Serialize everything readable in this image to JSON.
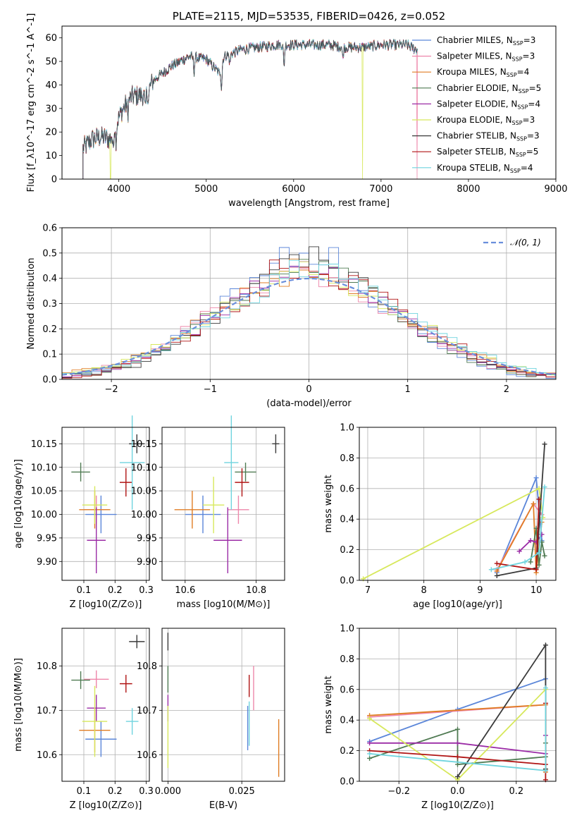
{
  "colors": {
    "Chabrier MILES": "#5b86d9",
    "Salpeter MILES": "#ee86aa",
    "Kroupa MILES": "#e07d24",
    "Chabrier ELODIE": "#4f7a52",
    "Salpeter ELODIE": "#9b2ca6",
    "Kroupa ELODIE": "#d7e85c",
    "Chabrier STELIB": "#3a3a3a",
    "Salpeter STELIB": "#b01414",
    "Kroupa STELIB": "#6fd4de",
    "normal": "#6a8fdc"
  },
  "chart_data": [
    {
      "id": "spectrum",
      "type": "line",
      "title": "PLATE=2115, MJD=53535, FIBERID=0426, z=0.052",
      "xlabel": "wavelength [Angstrom, rest frame]",
      "ylabel": "Flux [f_λ10^-17 erg cm^-2 s^-1 A^-1]",
      "xlim": [
        3350,
        9000
      ],
      "ylim": [
        0,
        65
      ],
      "xticks": [
        4000,
        5000,
        6000,
        7000,
        8000,
        9000
      ],
      "yticks": [
        0,
        10,
        20,
        30,
        40,
        50,
        60
      ],
      "grid": false,
      "legend_position": "right",
      "continuum_x": [
        3590,
        3700,
        3800,
        3900,
        3950,
        4050,
        4150,
        4300,
        4400,
        4600,
        4800,
        5000,
        5150,
        5200,
        5400,
        5600,
        5800,
        6000,
        6200,
        6400,
        6600,
        6800,
        7000,
        7200,
        7300,
        7400
      ],
      "continuum_y": [
        13,
        17,
        18,
        17,
        22,
        30,
        35,
        36,
        42,
        48,
        52,
        51,
        45,
        52,
        55,
        56,
        57,
        57,
        57,
        57,
        56,
        56,
        57,
        57,
        57,
        55
      ],
      "dropouts": [
        {
          "series": "Kroupa ELODIE",
          "x": 3905
        },
        {
          "series": "Kroupa ELODIE",
          "x": 6790
        },
        {
          "series": "Salpeter MILES",
          "x": 7410
        }
      ],
      "series": [
        {
          "name": "Chabrier MILES",
          "nssp": "3"
        },
        {
          "name": "Salpeter MILES",
          "nssp": "3"
        },
        {
          "name": "Kroupa MILES",
          "nssp": "4"
        },
        {
          "name": "Chabrier ELODIE",
          "nssp": "5"
        },
        {
          "name": "Salpeter ELODIE",
          "nssp": "4"
        },
        {
          "name": "Kroupa ELODIE",
          "nssp": "3"
        },
        {
          "name": "Chabrier STELIB",
          "nssp": "3"
        },
        {
          "name": "Salpeter STELIB",
          "nssp": "5"
        },
        {
          "name": "Kroupa STELIB",
          "nssp": "4"
        }
      ]
    },
    {
      "id": "residuals",
      "type": "line",
      "xlabel": "(data-model)/error",
      "ylabel": "Normed distribution",
      "xlim": [
        -2.5,
        2.5
      ],
      "ylim": [
        0,
        0.6
      ],
      "xticks": [
        -2,
        -1,
        0,
        1,
        2
      ],
      "yticks": [
        0.0,
        0.1,
        0.2,
        0.3,
        0.4,
        0.5,
        0.6
      ],
      "grid": true,
      "legend_position": "top-right",
      "normal_label": "𝒩(0, 1)",
      "bin_width": 0.1
    },
    {
      "id": "age-vs-Z",
      "type": "scatter",
      "xlabel": "Z [log10(Z/Z⊙)]",
      "ylabel": "age  [log10(age/yr)]",
      "xlim": [
        0.03,
        0.31
      ],
      "ylim": [
        9.86,
        10.185
      ],
      "xticks": [
        0.1,
        0.2,
        0.3
      ],
      "yticks": [
        9.9,
        9.95,
        10.0,
        10.05,
        10.1,
        10.15
      ],
      "grid": true,
      "points": [
        {
          "series": "Chabrier MILES",
          "x": 0.155,
          "y": 10.0,
          "xerr": 0.05,
          "yerr": 0.04
        },
        {
          "series": "Salpeter MILES",
          "x": 0.14,
          "y": 10.01,
          "xerr": 0.04,
          "yerr": 0.03
        },
        {
          "series": "Kroupa MILES",
          "x": 0.135,
          "y": 10.01,
          "xerr": 0.05,
          "yerr": 0.04
        },
        {
          "series": "Chabrier ELODIE",
          "x": 0.09,
          "y": 10.09,
          "xerr": 0.03,
          "yerr": 0.02
        },
        {
          "series": "Salpeter ELODIE",
          "x": 0.14,
          "y": 9.945,
          "xerr": 0.03,
          "yerr": 0.07
        },
        {
          "series": "Kroupa ELODIE",
          "x": 0.135,
          "y": 10.02,
          "xerr": 0.04,
          "yerr": 0.04
        },
        {
          "series": "Chabrier STELIB",
          "x": 0.27,
          "y": 10.15,
          "xerr": 0.025,
          "yerr": 0.02
        },
        {
          "series": "Salpeter STELIB",
          "x": 0.235,
          "y": 10.068,
          "xerr": 0.02,
          "yerr": 0.03
        },
        {
          "series": "Kroupa STELIB",
          "x": 0.255,
          "y": 10.11,
          "xerr": 0.04,
          "yerr": 0.1
        }
      ]
    },
    {
      "id": "age-vs-mass",
      "type": "scatter",
      "xlabel": "mass [log10(M/M⊙)]",
      "ylabel": "",
      "xlim": [
        10.535,
        10.88
      ],
      "ylim": [
        9.86,
        10.185
      ],
      "xticks": [
        10.6,
        10.8
      ],
      "yticks": [
        9.9,
        9.95,
        10.0,
        10.05,
        10.1,
        10.15
      ],
      "grid": true,
      "points": [
        {
          "series": "Chabrier MILES",
          "x": 10.65,
          "y": 10.0,
          "xerr": 0.05,
          "yerr": 0.04
        },
        {
          "series": "Salpeter MILES",
          "x": 10.75,
          "y": 10.01,
          "xerr": 0.03,
          "yerr": 0.03
        },
        {
          "series": "Kroupa MILES",
          "x": 10.62,
          "y": 10.01,
          "xerr": 0.05,
          "yerr": 0.04
        },
        {
          "series": "Chabrier ELODIE",
          "x": 10.77,
          "y": 10.09,
          "xerr": 0.03,
          "yerr": 0.02
        },
        {
          "series": "Salpeter ELODIE",
          "x": 10.72,
          "y": 9.945,
          "xerr": 0.04,
          "yerr": 0.07
        },
        {
          "series": "Kroupa ELODIE",
          "x": 10.68,
          "y": 10.02,
          "xerr": 0.03,
          "yerr": 0.06
        },
        {
          "series": "Chabrier STELIB",
          "x": 10.855,
          "y": 10.15,
          "xerr": 0.01,
          "yerr": 0.02
        },
        {
          "series": "Salpeter STELIB",
          "x": 10.76,
          "y": 10.068,
          "xerr": 0.02,
          "yerr": 0.03
        },
        {
          "series": "Kroupa STELIB",
          "x": 10.73,
          "y": 10.11,
          "xerr": 0.02,
          "yerr": 0.1
        }
      ]
    },
    {
      "id": "weight-vs-age",
      "type": "line",
      "xlabel": "age  [log10(age/yr)]",
      "ylabel": "mass weight",
      "xlim": [
        6.85,
        10.35
      ],
      "ylim": [
        0,
        1.0
      ],
      "xticks": [
        7,
        8,
        9,
        10
      ],
      "yticks": [
        0.0,
        0.2,
        0.4,
        0.6,
        0.8,
        1.0
      ],
      "grid": true,
      "series": [
        {
          "name": "Chabrier MILES",
          "x": [
            9.3,
            10.0,
            10.1
          ],
          "y": [
            0.05,
            0.67,
            0.26
          ]
        },
        {
          "name": "Salpeter MILES",
          "x": [
            9.3,
            9.95,
            10.1
          ],
          "y": [
            0.07,
            0.5,
            0.43
          ]
        },
        {
          "name": "Kroupa MILES",
          "x": [
            9.3,
            9.95,
            10.0,
            10.1
          ],
          "y": [
            0.06,
            0.5,
            0.05,
            0.38
          ]
        },
        {
          "name": "Chabrier ELODIE",
          "x": [
            9.9,
            10.0,
            10.05,
            10.1,
            10.15
          ],
          "y": [
            0.12,
            0.34,
            0.1,
            0.25,
            0.16
          ]
        },
        {
          "name": "Salpeter ELODIE",
          "x": [
            9.7,
            9.9,
            10.0,
            10.1
          ],
          "y": [
            0.19,
            0.26,
            0.25,
            0.3
          ]
        },
        {
          "name": "Kroupa ELODIE",
          "x": [
            6.92,
            10.05,
            10.12
          ],
          "y": [
            0.01,
            0.6,
            0.41
          ]
        },
        {
          "name": "Chabrier STELIB",
          "x": [
            9.3,
            10.0,
            10.15
          ],
          "y": [
            0.03,
            0.08,
            0.89
          ]
        },
        {
          "name": "Salpeter STELIB",
          "x": [
            9.3,
            10.0,
            10.05
          ],
          "y": [
            0.11,
            0.07,
            0.53
          ]
        },
        {
          "name": "Kroupa STELIB",
          "x": [
            9.2,
            9.8,
            10.05,
            10.15
          ],
          "y": [
            0.07,
            0.12,
            0.18,
            0.61
          ]
        }
      ]
    },
    {
      "id": "mass-vs-Z",
      "type": "scatter",
      "xlabel": "Z [log10(Z/Z⊙)]",
      "ylabel": "mass [log10(M/M⊙)]",
      "xlim": [
        0.03,
        0.31
      ],
      "ylim": [
        10.54,
        10.885
      ],
      "xticks": [
        0.1,
        0.2,
        0.3
      ],
      "yticks": [
        10.6,
        10.7,
        10.8
      ],
      "grid": true,
      "points": [
        {
          "series": "Chabrier MILES",
          "x": 0.155,
          "y": 10.635,
          "xerr": 0.05,
          "yerr": 0.04
        },
        {
          "series": "Salpeter MILES",
          "x": 0.14,
          "y": 10.77,
          "xerr": 0.04,
          "yerr": 0.02
        },
        {
          "series": "Kroupa MILES",
          "x": 0.135,
          "y": 10.655,
          "xerr": 0.05,
          "yerr": 0.05
        },
        {
          "series": "Chabrier ELODIE",
          "x": 0.09,
          "y": 10.768,
          "xerr": 0.03,
          "yerr": 0.02
        },
        {
          "series": "Salpeter ELODIE",
          "x": 0.14,
          "y": 10.705,
          "xerr": 0.03,
          "yerr": 0.03
        },
        {
          "series": "Kroupa ELODIE",
          "x": 0.135,
          "y": 10.675,
          "xerr": 0.04,
          "yerr": 0.08
        },
        {
          "series": "Chabrier STELIB",
          "x": 0.27,
          "y": 10.855,
          "xerr": 0.025,
          "yerr": 0.015
        },
        {
          "series": "Salpeter STELIB",
          "x": 0.235,
          "y": 10.76,
          "xerr": 0.02,
          "yerr": 0.02
        },
        {
          "series": "Kroupa STELIB",
          "x": 0.255,
          "y": 10.675,
          "xerr": 0.02,
          "yerr": 0.03
        }
      ]
    },
    {
      "id": "mass-vs-ebv",
      "type": "scatter",
      "xlabel": "E(B-V)",
      "ylabel": "",
      "xlim": [
        -0.002,
        0.0395
      ],
      "ylim": [
        10.54,
        10.885
      ],
      "xticks": [
        0.0,
        0.025
      ],
      "xticklabels": [
        "0.000",
        "0.025"
      ],
      "yticks": [
        10.6,
        10.7,
        10.8
      ],
      "grid": true,
      "points": [
        {
          "series": "Chabrier MILES",
          "x": 0.027,
          "y": 10.66,
          "yerr": 0.05
        },
        {
          "series": "Salpeter MILES",
          "x": 0.029,
          "y": 10.75,
          "yerr": 0.05
        },
        {
          "series": "Kroupa MILES",
          "x": 0.0375,
          "y": 10.615,
          "yerr": 0.065
        },
        {
          "series": "Chabrier ELODIE",
          "x": 0.0,
          "y": 10.77,
          "yerr": 0.03
        },
        {
          "series": "Salpeter ELODIE",
          "x": 0.0,
          "y": 10.705,
          "yerr": 0.03
        },
        {
          "series": "Kroupa ELODIE",
          "x": 0.0,
          "y": 10.64,
          "yerr": 0.07
        },
        {
          "series": "Chabrier STELIB",
          "x": 0.0,
          "y": 10.855,
          "yerr": 0.02
        },
        {
          "series": "Salpeter STELIB",
          "x": 0.0275,
          "y": 10.755,
          "yerr": 0.025
        },
        {
          "series": "Kroupa STELIB",
          "x": 0.0275,
          "y": 10.67,
          "yerr": 0.05
        }
      ]
    },
    {
      "id": "weight-vs-Z",
      "type": "line",
      "xlabel": "Z [log10(Z/Z⊙)]",
      "ylabel": "mass weight",
      "xlim": [
        -0.335,
        0.335
      ],
      "ylim": [
        0,
        1.0
      ],
      "xticks": [
        -0.2,
        0.0,
        0.2
      ],
      "yticks": [
        0.0,
        0.2,
        0.4,
        0.6,
        0.8,
        1.0
      ],
      "grid": true,
      "series": [
        {
          "name": "Chabrier MILES",
          "x": [
            -0.3,
            0.0,
            0.3,
            0.3
          ],
          "y": [
            0.26,
            0.47,
            0.67,
            0.07
          ]
        },
        {
          "name": "Salpeter MILES",
          "x": [
            -0.3,
            0.3,
            0.3
          ],
          "y": [
            0.42,
            0.5,
            0.08
          ]
        },
        {
          "name": "Kroupa MILES",
          "x": [
            -0.3,
            0.3,
            0.3
          ],
          "y": [
            0.43,
            0.5,
            0.06
          ]
        },
        {
          "name": "Chabrier ELODIE",
          "x": [
            -0.3,
            0.0,
            0.0,
            0.3,
            0.3
          ],
          "y": [
            0.15,
            0.34,
            0.11,
            0.16,
            0.25
          ]
        },
        {
          "name": "Salpeter ELODIE",
          "x": [
            -0.3,
            0.0,
            0.3,
            0.3
          ],
          "y": [
            0.25,
            0.25,
            0.18,
            0.3
          ]
        },
        {
          "name": "Kroupa ELODIE",
          "x": [
            -0.3,
            0.0,
            0.3,
            0.3
          ],
          "y": [
            0.41,
            0.01,
            0.6,
            0.08
          ]
        },
        {
          "name": "Chabrier STELIB",
          "x": [
            0.0,
            0.3,
            0.3
          ],
          "y": [
            0.03,
            0.89,
            0.08
          ]
        },
        {
          "name": "Salpeter STELIB",
          "x": [
            -0.3,
            0.0,
            0.3,
            0.3,
            0.3
          ],
          "y": [
            0.2,
            0.16,
            0.11,
            0.51,
            0.01
          ]
        },
        {
          "name": "Kroupa STELIB",
          "x": [
            -0.3,
            0.3,
            0.3
          ],
          "y": [
            0.18,
            0.07,
            0.61
          ]
        }
      ]
    }
  ]
}
